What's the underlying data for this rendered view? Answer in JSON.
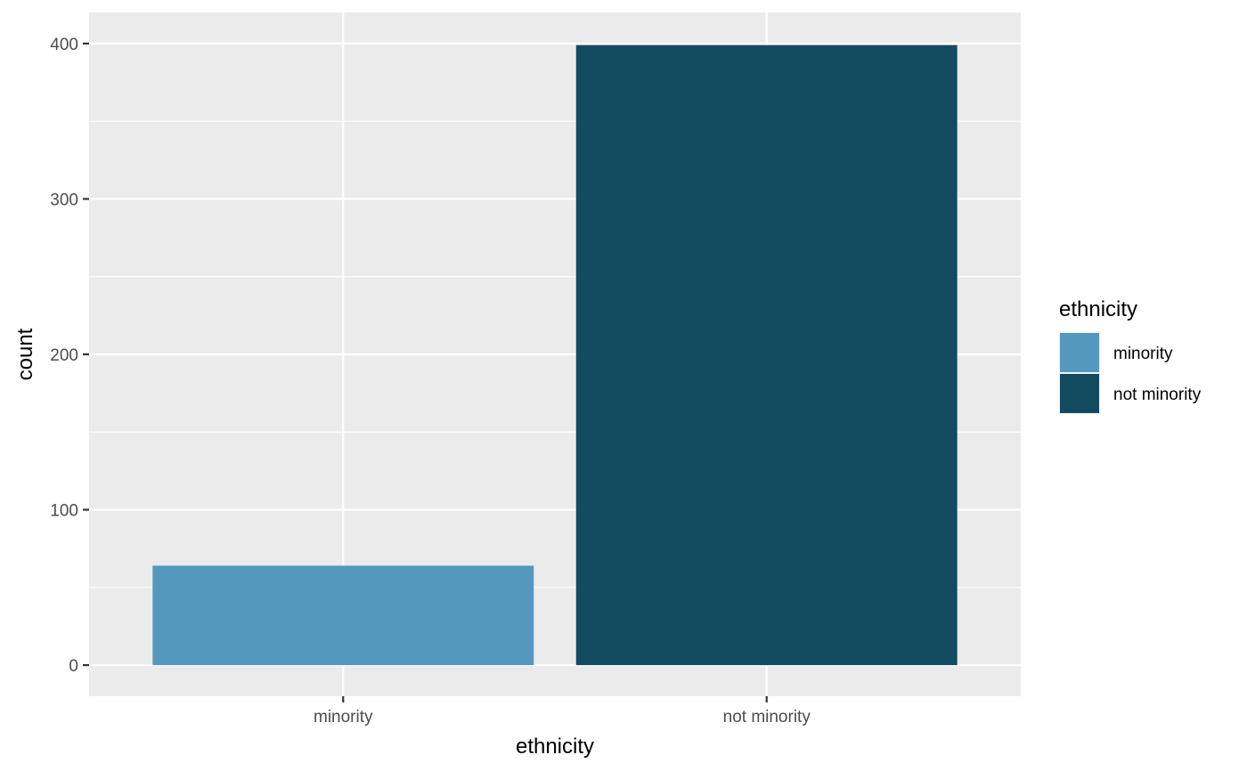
{
  "chart_data": {
    "type": "bar",
    "categories": [
      "minority",
      "not minority"
    ],
    "values": [
      64,
      399
    ],
    "colors": [
      "#5499bd",
      "#124b60"
    ],
    "xlabel": "ethnicity",
    "ylabel": "count",
    "ylim": [
      -20,
      420
    ],
    "yticks": [
      0,
      100,
      200,
      300,
      400
    ],
    "ytick_labels": [
      "0",
      "100",
      "200",
      "300",
      "400"
    ],
    "grid": true,
    "panel_background": "#ebebeb",
    "grid_color": "#ffffff",
    "legend": {
      "title": "ethnicity",
      "position": "right",
      "entries": [
        {
          "label": "minority",
          "color": "#5499bd"
        },
        {
          "label": "not minority",
          "color": "#124b60"
        }
      ]
    }
  }
}
